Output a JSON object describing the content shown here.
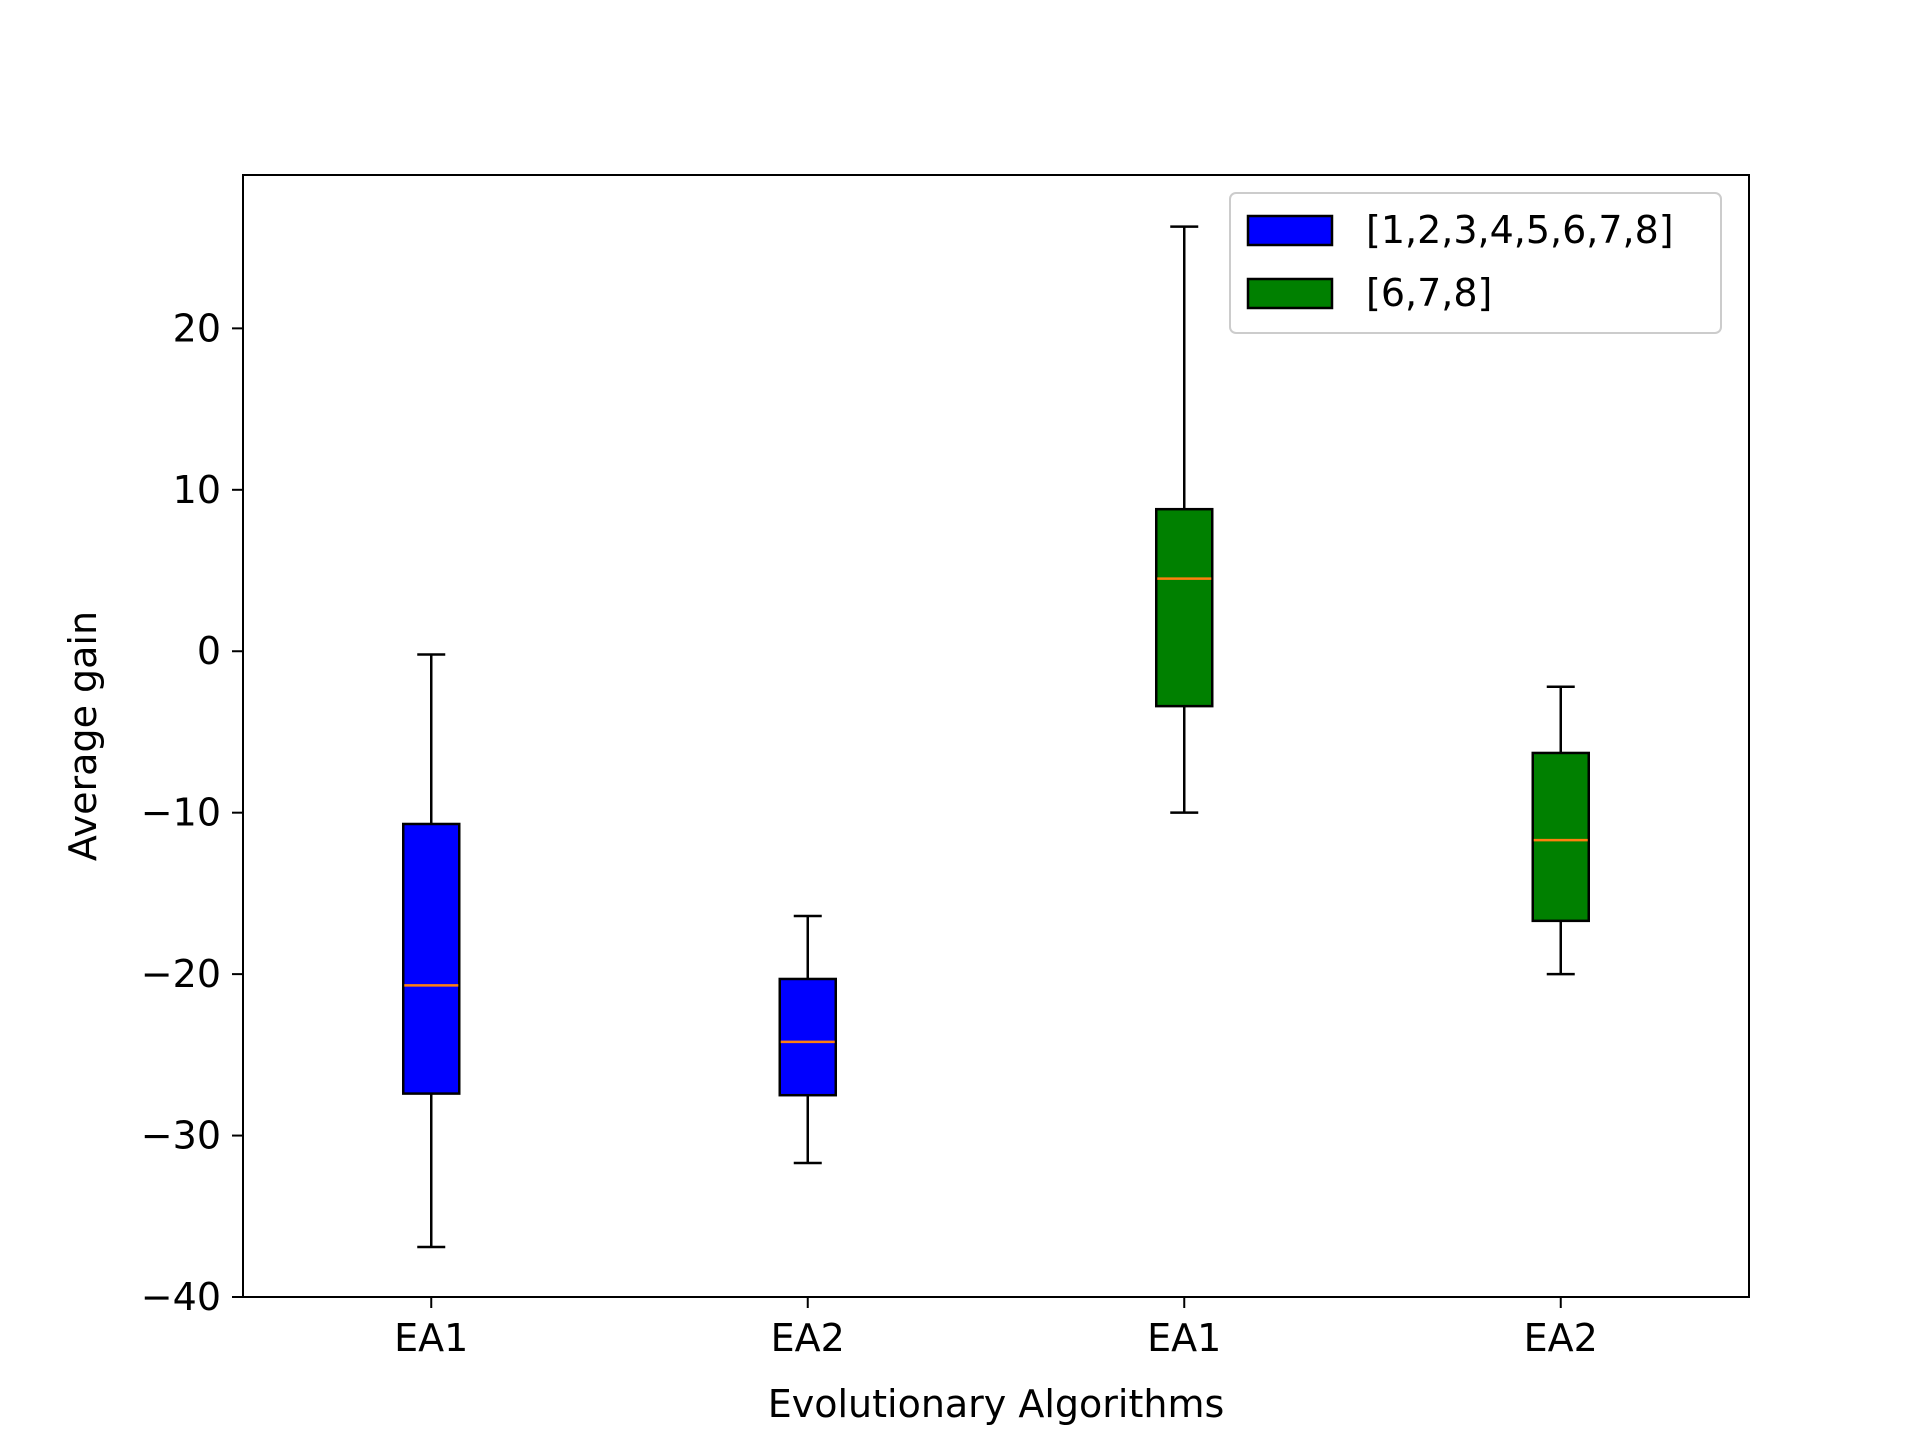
{
  "chart_data": {
    "type": "box",
    "title": "",
    "xlabel": "Evolutionary Algorithms",
    "ylabel": "Average gain",
    "ylim": [
      -40,
      29.5
    ],
    "yticks": [
      -40,
      -30,
      -20,
      -10,
      0,
      10,
      20
    ],
    "ytick_labels": [
      "−40",
      "−30",
      "−20",
      "−10",
      "0",
      "10",
      "20"
    ],
    "categories": [
      "EA1",
      "EA2",
      "EA1",
      "EA2"
    ],
    "grid": false,
    "legend_position": "top-right",
    "median_color": "#ff7f0e",
    "series": [
      {
        "name": "[1,2,3,4,5,6,7,8]",
        "color": "#0000ff",
        "positions": [
          1,
          2
        ],
        "boxes": [
          {
            "whislo": -36.9,
            "q1": -27.4,
            "med": -20.7,
            "q3": -10.7,
            "whishi": -0.2
          },
          {
            "whislo": -31.7,
            "q1": -27.5,
            "med": -24.2,
            "q3": -20.3,
            "whishi": -16.4
          }
        ]
      },
      {
        "name": "[6,7,8]",
        "color": "#008000",
        "positions": [
          3,
          4
        ],
        "boxes": [
          {
            "whislo": -10.0,
            "q1": -3.4,
            "med": 4.5,
            "q3": 8.8,
            "whishi": 26.3
          },
          {
            "whislo": -20.0,
            "q1": -16.7,
            "med": -11.7,
            "q3": -6.3,
            "whishi": -2.2
          }
        ]
      }
    ]
  }
}
